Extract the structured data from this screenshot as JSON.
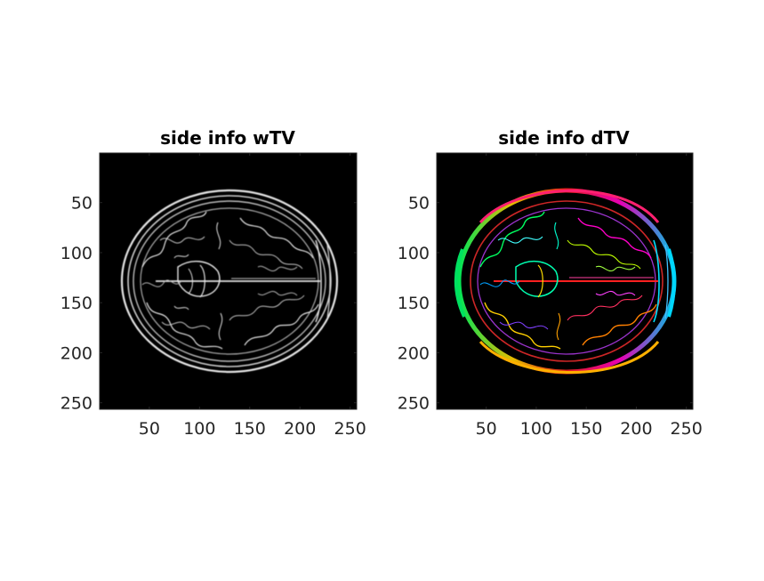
{
  "chart_data": [
    {
      "type": "heatmap",
      "title": "side info wTV",
      "xlabel": "",
      "ylabel": "",
      "xlim": [
        0.5,
        256.5
      ],
      "ylim": [
        0.5,
        256.5
      ],
      "y_direction": "reversed",
      "xticks": [
        50,
        100,
        150,
        200,
        250
      ],
      "yticks": [
        50,
        100,
        150,
        200,
        250
      ],
      "colormap": "grayscale",
      "background_color": "#000000",
      "edge_color": "#e6e6e6",
      "grid": false,
      "content": "edge-magnitude map of an axial brain MRI slice"
    },
    {
      "type": "heatmap",
      "title": "side info dTV",
      "xlabel": "",
      "ylabel": "",
      "xlim": [
        0.5,
        256.5
      ],
      "ylim": [
        0.5,
        256.5
      ],
      "y_direction": "reversed",
      "xticks": [
        50,
        100,
        150,
        200,
        250
      ],
      "yticks": [
        50,
        100,
        150,
        200,
        250
      ],
      "colormap": "hue-encoded gradient direction",
      "background_color": "#000000",
      "edge_colors": [
        "#ff2020",
        "#ff00c8",
        "#8040ff",
        "#00d8ff",
        "#00ff60",
        "#c0ff00",
        "#ffd000"
      ],
      "grid": false,
      "content": "directional edge map of an axial brain MRI slice"
    }
  ]
}
